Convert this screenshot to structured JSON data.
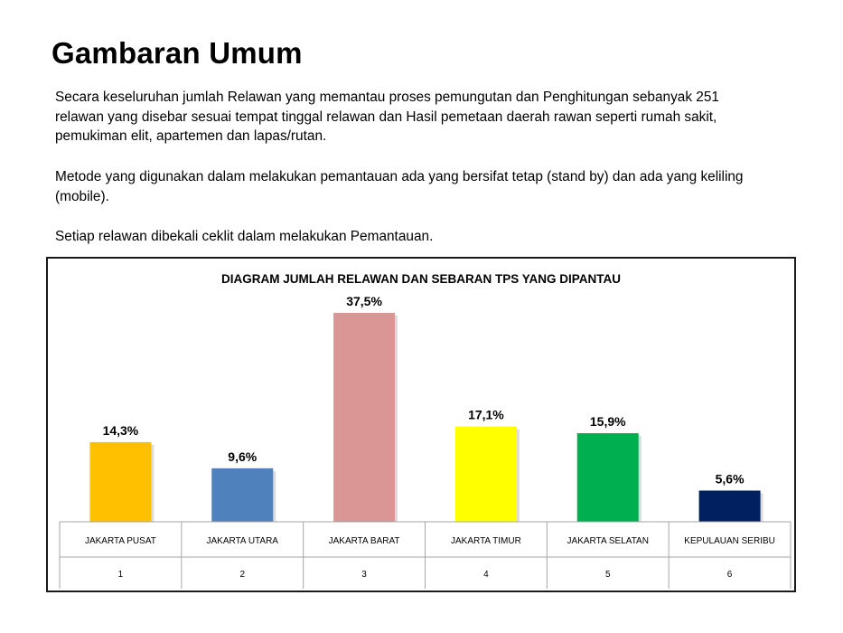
{
  "slide": {
    "title": "Gambaran Umum",
    "paragraphs": [
      "Secara keseluruhan jumlah Relawan yang memantau proses pemungutan dan  Penghitungan  sebanyak 251 relawan yang disebar sesuai tempat tinggal relawan dan Hasil pemetaan daerah rawan  seperti rumah sakit, pemukiman elit,  apartemen dan lapas/rutan.",
      "Metode yang digunakan dalam melakukan pemantauan ada yang bersifat tetap (stand by)  dan ada yang keliling (mobile).",
      "Setiap relawan dibekali ceklit dalam melakukan Pemantauan."
    ]
  },
  "chart_data": {
    "type": "bar",
    "title": "DIAGRAM JUMLAH RELAWAN DAN SEBARAN TPS YANG DIPANTAU",
    "categories": [
      "JAKARTA PUSAT",
      "JAKARTA UTARA",
      "JAKARTA BARAT",
      "JAKARTA TIMUR",
      "JAKARTA SELATAN",
      "KEPULAUAN SERIBU"
    ],
    "category_numbers": [
      "1",
      "2",
      "3",
      "4",
      "5",
      "6"
    ],
    "values": [
      14.3,
      9.6,
      37.5,
      17.1,
      15.9,
      5.6
    ],
    "data_labels": [
      "14,3%",
      "9,6%",
      "37,5%",
      "17,1%",
      "15,9%",
      "5,6%"
    ],
    "colors": [
      "#FFC000",
      "#4F81BD",
      "#D99694",
      "#FFFF00",
      "#00B050",
      "#002060"
    ],
    "grid": false,
    "legend": "none"
  }
}
